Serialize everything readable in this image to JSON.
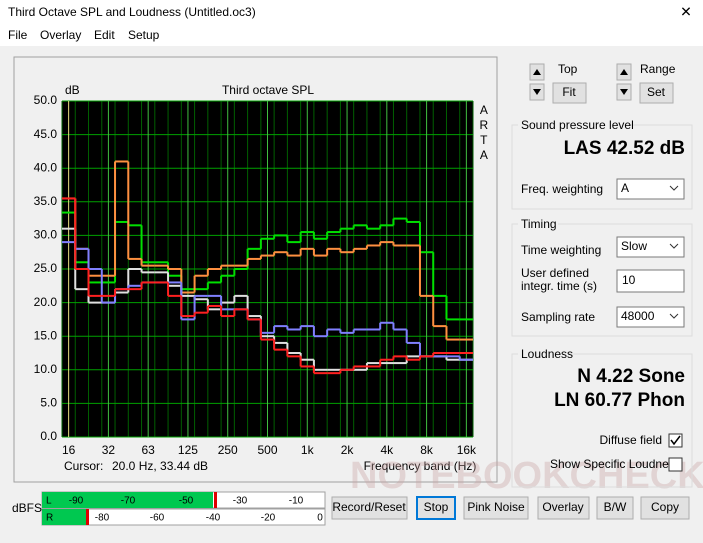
{
  "window": {
    "title": "Third Octave SPL and Loudness (Untitled.oc3)",
    "close": "✕"
  },
  "menu": [
    "File",
    "Overlay",
    "Edit",
    "Setup"
  ],
  "chart_data": {
    "type": "step",
    "title": "Third octave SPL",
    "y_label": "dB",
    "x_label": "Frequency band (Hz)",
    "side_label": "ARTA",
    "cursor_label": "Cursor:",
    "cursor_value": "20.0 Hz, 33.44 dB",
    "categories": [
      "16",
      null,
      null,
      "32",
      null,
      null,
      "63",
      null,
      null,
      "125",
      null,
      null,
      "250",
      null,
      null,
      "500",
      null,
      null,
      "1k",
      null,
      null,
      "2k",
      null,
      null,
      "4k",
      null,
      null,
      "8k",
      null,
      null,
      "16k"
    ],
    "ylim": [
      0,
      50
    ],
    "yticks": [
      {
        "value": 0,
        "label": "0.0"
      },
      {
        "value": 5,
        "label": "5.0"
      },
      {
        "value": 10,
        "label": "10.0"
      },
      {
        "value": 15,
        "label": "15.0"
      },
      {
        "value": 20,
        "label": "20.0"
      },
      {
        "value": 25,
        "label": "25.0"
      },
      {
        "value": 30,
        "label": "30.0"
      },
      {
        "value": 35,
        "label": "35.0"
      },
      {
        "value": 40,
        "label": "40.0"
      },
      {
        "value": 45,
        "label": "45.0"
      },
      {
        "value": 50,
        "label": "50.0"
      }
    ],
    "grid": true,
    "series": [
      {
        "color": "#00e000",
        "values": [
          33.4,
          26,
          23,
          23,
          32,
          31.5,
          26,
          26,
          24,
          22,
          22,
          23,
          24,
          25,
          28,
          29.5,
          30,
          29,
          30.5,
          29.5,
          30.5,
          31,
          31.5,
          31,
          31.5,
          32.5,
          32,
          27.5,
          21,
          17.5,
          17.5
        ]
      },
      {
        "color": "#ff9040",
        "values": [
          35.5,
          28,
          24,
          24,
          41,
          26.5,
          25.5,
          25.5,
          25,
          21.5,
          24,
          25,
          25.5,
          25.5,
          26.5,
          27,
          27.5,
          27,
          28,
          27,
          28,
          27.5,
          28,
          28.5,
          29,
          28.5,
          28.5,
          21,
          16.5,
          14.5,
          14.5
        ]
      },
      {
        "color": "#e0e0e0",
        "values": [
          31,
          22,
          20,
          20,
          21.5,
          25,
          24.5,
          24.5,
          22.5,
          21,
          20.5,
          19,
          20,
          21,
          18,
          15,
          14,
          12.5,
          11.5,
          10,
          10,
          10,
          10,
          11,
          11,
          11,
          12,
          12,
          12,
          11.5,
          11.5
        ]
      },
      {
        "color": "#8080ff",
        "values": [
          29,
          28,
          25,
          20,
          22,
          22.5,
          23,
          23,
          23,
          17.5,
          21,
          21,
          19,
          19,
          17.5,
          15.5,
          16.5,
          16,
          16.5,
          15,
          16,
          15.5,
          16,
          16,
          17,
          16,
          14,
          12,
          12,
          12,
          11.5
        ]
      },
      {
        "color": "#ff2020",
        "values": [
          35.5,
          25,
          21,
          21,
          22,
          22,
          23,
          23,
          21,
          18,
          18.5,
          19.5,
          18,
          19,
          17.5,
          14.5,
          13,
          12,
          10.5,
          9.5,
          9.5,
          10,
          10.5,
          10.5,
          11.5,
          12,
          11.5,
          12,
          12.5,
          12.5,
          12.5
        ]
      }
    ]
  },
  "controls": {
    "top": "Top",
    "fit": "Fit",
    "range": "Range",
    "set": "Set"
  },
  "spl": {
    "title": "Sound pressure level",
    "value": "LAS 42.52 dB",
    "weighting_label": "Freq. weighting",
    "weighting": "A"
  },
  "timing": {
    "title": "Timing",
    "weighting_label": "Time weighting",
    "weighting": "Slow",
    "integr_label_1": "User defined",
    "integr_label_2": "integr. time (s)",
    "integr": "10",
    "rate_label": "Sampling rate",
    "rate": "48000"
  },
  "loudness": {
    "title": "Loudness",
    "n": "N 4.22 Sone",
    "ln": "LN 60.77 Phon",
    "diffuse": "Diffuse field",
    "specific": "Show Specific Loudness"
  },
  "meter": {
    "unit": "dBFS",
    "l": "L",
    "r": "R",
    "l_ticks": [
      "-90",
      "-70",
      "-50",
      "-30",
      "-10"
    ],
    "r_ticks": [
      "-80",
      "-60",
      "-40",
      "-20",
      "0"
    ]
  },
  "buttons": [
    "Record/Reset",
    "Stop",
    "Pink Noise",
    "Overlay",
    "B/W",
    "Copy"
  ],
  "watermark": "NOTEBOOKCHECK"
}
